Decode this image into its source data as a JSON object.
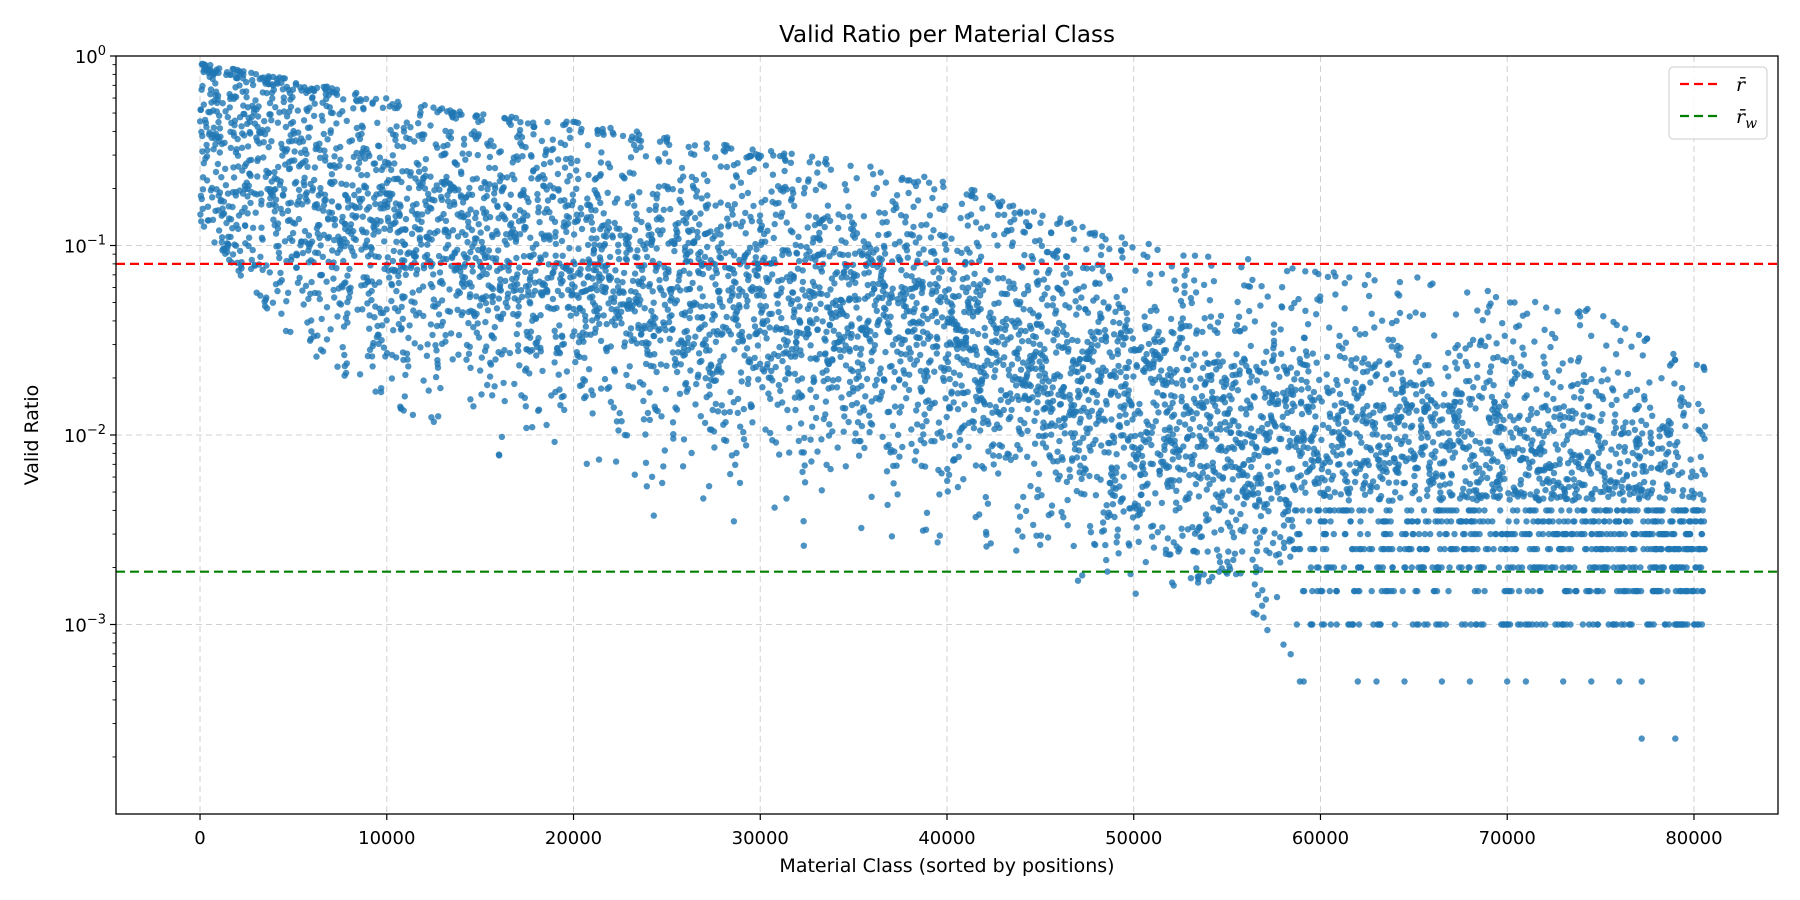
{
  "chart_data": {
    "type": "scatter",
    "title": "Valid Ratio per Material Class",
    "xlabel": "Material Class (sorted by positions)",
    "ylabel": "Valid Ratio",
    "yscale": "log",
    "xlim": [
      -4500,
      84500
    ],
    "ylim": [
      0.0001,
      1.0
    ],
    "x_ticks": [
      0,
      10000,
      20000,
      30000,
      40000,
      50000,
      60000,
      70000,
      80000
    ],
    "x_tick_labels": [
      "0",
      "10000",
      "20000",
      "30000",
      "40000",
      "50000",
      "60000",
      "70000",
      "80000"
    ],
    "y_ticks": [
      {
        "value": 1.0,
        "base": "10",
        "exp": "0"
      },
      {
        "value": 0.1,
        "base": "10",
        "exp": "−1"
      },
      {
        "value": 0.01,
        "base": "10",
        "exp": "−2"
      },
      {
        "value": 0.001,
        "base": "10",
        "exp": "−3"
      }
    ],
    "grid": true,
    "grid_style": "dashed",
    "series": [
      {
        "type": "scatter",
        "color": "#1f77b4",
        "x_range": [
          0,
          80600
        ],
        "upper_envelope": [
          [
            0,
            0.92
          ],
          [
            5000,
            0.75
          ],
          [
            10000,
            0.6
          ],
          [
            15000,
            0.5
          ],
          [
            20000,
            0.45
          ],
          [
            25000,
            0.38
          ],
          [
            30000,
            0.32
          ],
          [
            35000,
            0.28
          ],
          [
            40000,
            0.22
          ],
          [
            45000,
            0.15
          ],
          [
            50000,
            0.11
          ],
          [
            55000,
            0.09
          ],
          [
            60000,
            0.075
          ],
          [
            65000,
            0.07
          ],
          [
            70000,
            0.055
          ],
          [
            75000,
            0.045
          ],
          [
            80000,
            0.025
          ]
        ],
        "median_trend": [
          [
            0,
            0.45
          ],
          [
            5000,
            0.2
          ],
          [
            10000,
            0.12
          ],
          [
            15000,
            0.1
          ],
          [
            20000,
            0.08
          ],
          [
            25000,
            0.06
          ],
          [
            30000,
            0.05
          ],
          [
            35000,
            0.04
          ],
          [
            40000,
            0.035
          ],
          [
            45000,
            0.025
          ],
          [
            50000,
            0.015
          ],
          [
            55000,
            0.01
          ],
          [
            60000,
            0.008
          ],
          [
            65000,
            0.007
          ],
          [
            70000,
            0.006
          ],
          [
            75000,
            0.005
          ],
          [
            80000,
            0.003
          ]
        ],
        "lower_envelope": [
          [
            0,
            0.13
          ],
          [
            5000,
            0.03
          ],
          [
            10000,
            0.015
          ],
          [
            15000,
            0.008
          ],
          [
            20000,
            0.005
          ],
          [
            25000,
            0.003
          ],
          [
            30000,
            0.002
          ],
          [
            35000,
            0.003
          ],
          [
            40000,
            0.0025
          ],
          [
            45000,
            0.002
          ],
          [
            50000,
            0.0013
          ],
          [
            55000,
            0.0018
          ],
          [
            59000,
            0.0005
          ],
          [
            80600,
            0.00075
          ]
        ],
        "quantized_levels": [
          0.001,
          0.0015,
          0.002,
          0.0025,
          0.003,
          0.0035,
          0.004
        ],
        "sparse_low_points": [
          [
            58900,
            0.0005
          ],
          [
            59100,
            0.0005
          ],
          [
            62000,
            0.0005
          ],
          [
            63000,
            0.0005
          ],
          [
            64500,
            0.0005
          ],
          [
            66500,
            0.0005
          ],
          [
            68000,
            0.0005
          ],
          [
            70000,
            0.0005
          ],
          [
            71000,
            0.0005
          ],
          [
            73000,
            0.0005
          ],
          [
            74500,
            0.0005
          ],
          [
            76000,
            0.0005
          ],
          [
            77200,
            0.0005
          ],
          [
            77200,
            0.00025
          ],
          [
            79000,
            0.00025
          ]
        ]
      }
    ],
    "reference_lines": [
      {
        "name": "r̄",
        "value": 0.08,
        "color": "#ff0000",
        "style": "dashed"
      },
      {
        "name": "r̄w",
        "value": 0.0019,
        "color": "#008000",
        "style": "dashed"
      }
    ],
    "legend": {
      "position": "top-right",
      "entries": [
        {
          "label": "r̄",
          "sub": "",
          "color": "#ff0000"
        },
        {
          "label": "r̄",
          "sub": "w",
          "color": "#008000"
        }
      ]
    }
  }
}
